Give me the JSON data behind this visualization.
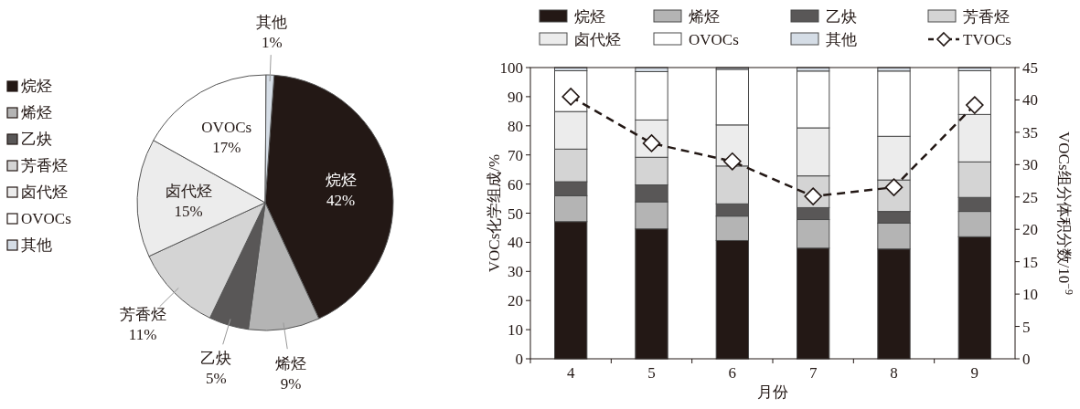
{
  "chart_data": [
    {
      "type": "pie",
      "categories": [
        "烷烃",
        "烯烃",
        "乙炔",
        "芳香烃",
        "卤代烃",
        "OVOCs",
        "其他"
      ],
      "values": [
        42,
        9,
        5,
        11,
        15,
        17,
        1
      ],
      "value_labels": [
        "42%",
        "9%",
        "5%",
        "11%",
        "15%",
        "17%",
        "1%"
      ],
      "colors": [
        "#231815",
        "#b4b4b4",
        "#595757",
        "#d4d4d4",
        "#ececec",
        "#ffffff",
        "#d5dde6"
      ],
      "legend": "left"
    },
    {
      "type": "bar",
      "stacked": true,
      "categories": [
        "4",
        "5",
        "6",
        "7",
        "8",
        "9"
      ],
      "xlabel": "月份",
      "ylabel": "VOCs化学组成/%",
      "y2label": "VOCs组分体积分数/10$^{−9}$",
      "ylim": [
        0,
        100
      ],
      "yticks": [
        0,
        10,
        20,
        30,
        40,
        50,
        60,
        70,
        80,
        90,
        100
      ],
      "y2lim": [
        0,
        45
      ],
      "y2ticks": [
        0,
        5,
        10,
        15,
        20,
        25,
        30,
        35,
        40,
        45
      ],
      "legend": "top",
      "grid": false,
      "series": [
        {
          "name": "烷烃",
          "color": "#231815",
          "values": [
            47.1,
            44.6,
            40.6,
            38.0,
            37.7,
            41.9
          ]
        },
        {
          "name": "烯烃",
          "color": "#b4b4b4",
          "values": [
            8.9,
            9.3,
            8.4,
            9.8,
            8.9,
            8.7
          ]
        },
        {
          "name": "乙炔",
          "color": "#595757",
          "values": [
            4.8,
            5.8,
            4.2,
            4.1,
            4.0,
            4.8
          ]
        },
        {
          "name": "芳香烃",
          "color": "#d4d4d4",
          "values": [
            11.2,
            9.5,
            13.0,
            10.9,
            10.8,
            12.2
          ]
        },
        {
          "name": "卤代烃",
          "color": "#ececec",
          "values": [
            12.9,
            12.8,
            14.1,
            16.5,
            15.0,
            16.3
          ]
        },
        {
          "name": "OVOCs",
          "color": "#ffffff",
          "values": [
            14.0,
            16.6,
            19.1,
            19.5,
            22.4,
            15.0
          ]
        },
        {
          "name": "其他",
          "color": "#d5dde6",
          "values": [
            1.1,
            1.4,
            0.6,
            1.2,
            1.2,
            1.1
          ]
        },
        {
          "name": "TVOCs",
          "type": "line",
          "axis": "y2",
          "color": "#231815",
          "marker": "diamond",
          "line_style": "dashed",
          "values": [
            40.5,
            33.3,
            30.5,
            25.1,
            26.5,
            39.2
          ]
        }
      ]
    }
  ]
}
